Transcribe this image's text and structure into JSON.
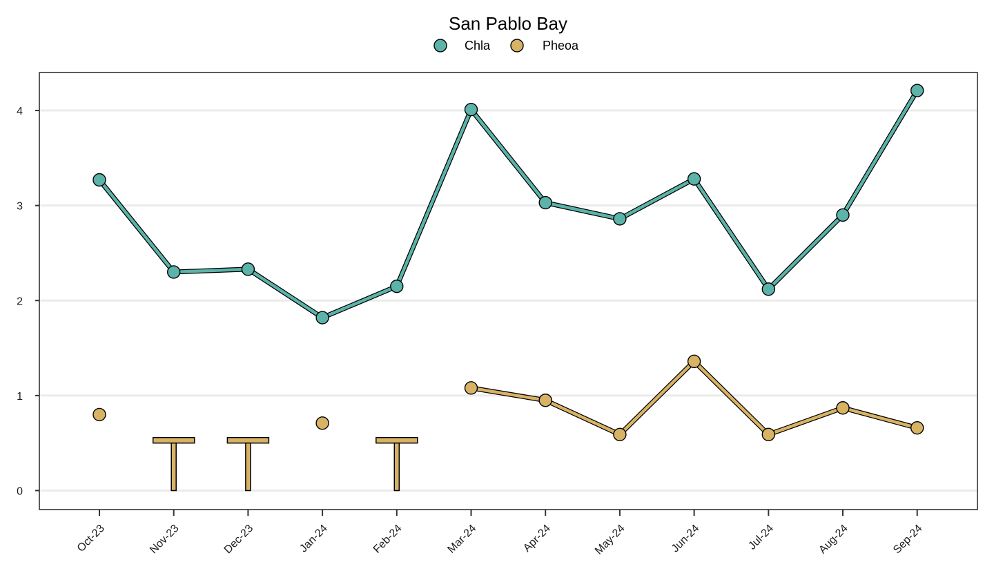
{
  "chart_data": {
    "type": "line",
    "title": "San Pablo Bay",
    "xlabel": "",
    "ylabel": "",
    "categories": [
      "Oct-23",
      "Nov-23",
      "Dec-23",
      "Jan-24",
      "Feb-24",
      "Mar-24",
      "Apr-24",
      "May-24",
      "Jun-24",
      "Jul-24",
      "Aug-24",
      "Sep-24"
    ],
    "ylim": [
      -0.2,
      4.4
    ],
    "yticks": [
      0,
      1,
      2,
      3,
      4
    ],
    "grid": "horizontal",
    "legend_position": "top",
    "series": [
      {
        "name": "Chla",
        "color": "#5bb3a9",
        "values": [
          3.27,
          2.3,
          2.33,
          1.82,
          2.15,
          4.01,
          3.03,
          2.86,
          3.28,
          2.12,
          2.9,
          4.21
        ],
        "below_detection": [
          false,
          false,
          false,
          false,
          false,
          false,
          false,
          false,
          false,
          false,
          false,
          false
        ]
      },
      {
        "name": "Pheoa",
        "color": "#d8b365",
        "values": [
          0.8,
          0.5,
          0.5,
          0.71,
          0.5,
          1.08,
          0.95,
          0.59,
          1.36,
          0.59,
          0.87,
          0.66
        ],
        "below_detection": [
          false,
          true,
          true,
          false,
          true,
          false,
          false,
          false,
          false,
          false,
          false,
          false
        ]
      }
    ]
  }
}
